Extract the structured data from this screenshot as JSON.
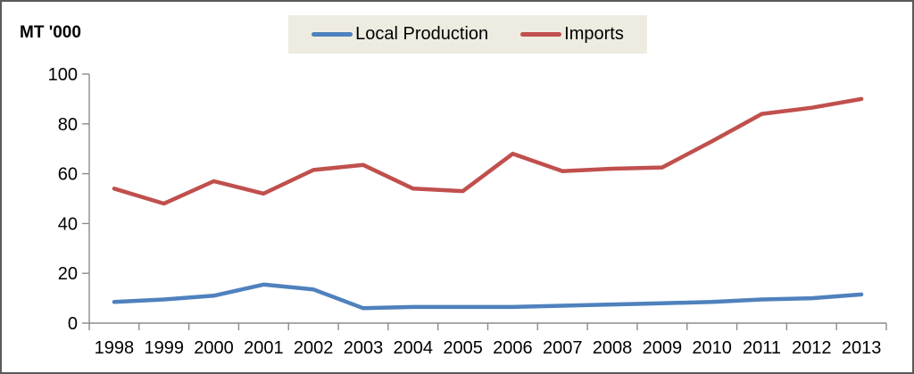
{
  "chart_data": {
    "type": "line",
    "title": "",
    "xlabel": "",
    "ylabel": "MT '000",
    "categories": [
      "1998",
      "1999",
      "2000",
      "2001",
      "2002",
      "2003",
      "2004",
      "2005",
      "2006",
      "2007",
      "2008",
      "2009",
      "2010",
      "2011",
      "2012",
      "2013"
    ],
    "series": [
      {
        "name": "Local Production",
        "color": "#4F81BD",
        "values": [
          8.5,
          9.5,
          11,
          15.5,
          13.5,
          6,
          6.5,
          6.5,
          6.5,
          7,
          7.5,
          8,
          8.5,
          9.5,
          10,
          11.5
        ]
      },
      {
        "name": "Imports",
        "color": "#C0504D",
        "values": [
          54,
          48,
          57,
          52,
          61.5,
          63.5,
          54,
          53,
          68,
          61,
          62,
          62.5,
          73,
          84,
          86.5,
          90
        ]
      }
    ],
    "ylim": [
      0,
      100
    ],
    "yticks": [
      0,
      20,
      40,
      60,
      80,
      100
    ],
    "grid": false,
    "legend_position": "top-center"
  },
  "colors": {
    "legend_bg": "#EEECE1",
    "axis": "#8C8C8C",
    "text": "#000000",
    "frame_border": "#5A5A5A",
    "background": "#FFFFFF"
  }
}
